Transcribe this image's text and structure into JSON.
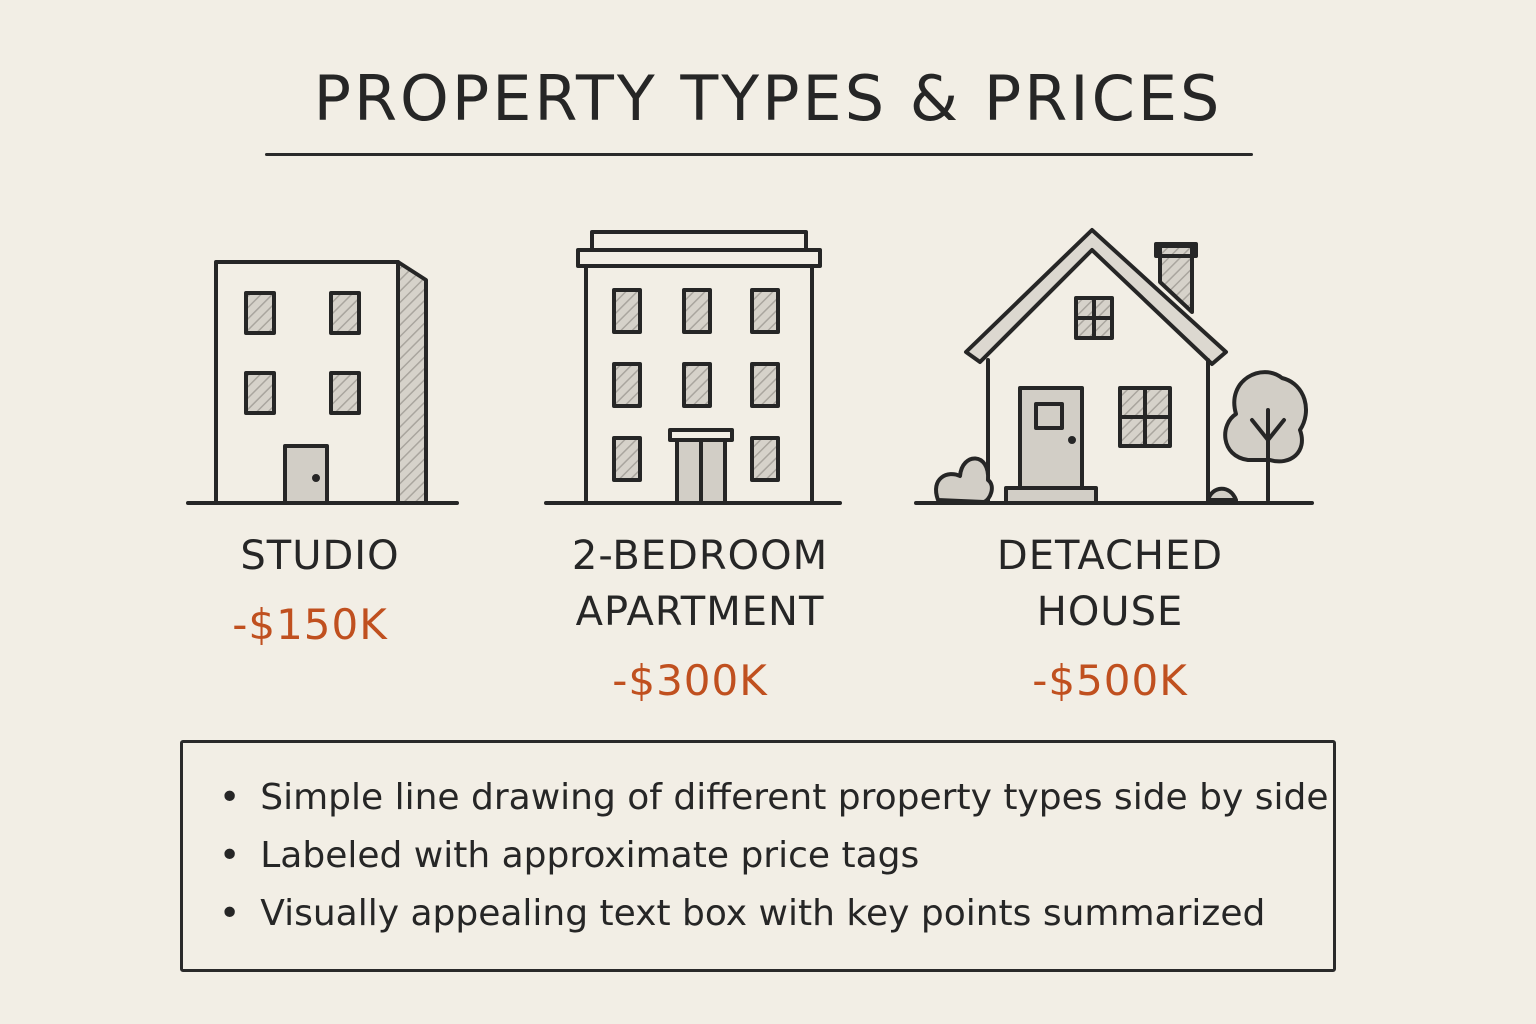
{
  "title": "PROPERTY TYPES & PRICES",
  "properties": [
    {
      "name": "STUDIO",
      "price": "-$150K",
      "icon": "studio-building-icon"
    },
    {
      "name_line1": "2-BEDROOM",
      "name_line2": "APARTMENT",
      "price": "-$300K",
      "icon": "apartment-building-icon"
    },
    {
      "name_line1": "DETACHED",
      "name_line2": "HOUSE",
      "price": "-$500K",
      "icon": "detached-house-icon"
    }
  ],
  "summary": [
    "Simple line drawing of different property types side by side",
    "Labeled with approximate price tags",
    "Visually appealing text box with key points summarized"
  ],
  "colors": {
    "background": "#f2eee5",
    "ink": "#262626",
    "price": "#c0501f",
    "shade": "#c9c5be"
  }
}
